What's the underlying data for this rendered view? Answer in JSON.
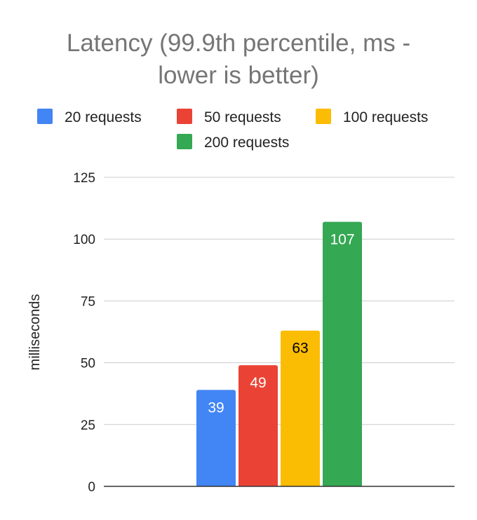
{
  "chart_data": {
    "type": "bar",
    "title_lines": [
      "Latency (99.9th percentile, ms -",
      "lower is better)"
    ],
    "ylabel": "milliseconds",
    "xlabel": "",
    "ylim": [
      0,
      125
    ],
    "yticks": [
      0,
      25,
      50,
      75,
      100,
      125
    ],
    "grid": true,
    "legend_position": "top",
    "series": [
      {
        "name": "20 requests",
        "values": [
          39
        ],
        "color": "#4285f4",
        "label_color": "#ffffff"
      },
      {
        "name": "50 requests",
        "values": [
          49
        ],
        "color": "#ea4335",
        "label_color": "#ffffff"
      },
      {
        "name": "100 requests",
        "values": [
          63
        ],
        "color": "#fbbc04",
        "label_color": "#000000"
      },
      {
        "name": "200 requests",
        "values": [
          107
        ],
        "color": "#34a853",
        "label_color": "#ffffff"
      }
    ],
    "data_labels": [
      "39",
      "49",
      "63",
      "107"
    ]
  }
}
